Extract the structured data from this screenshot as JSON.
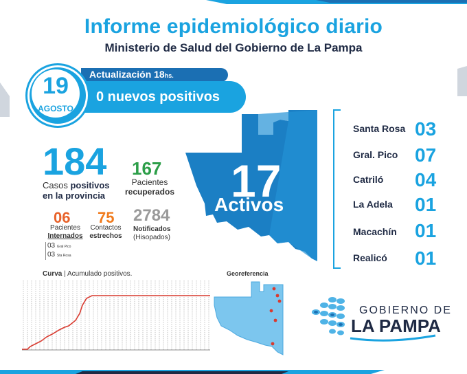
{
  "header": {
    "title": "Informe epidemiológico diario",
    "subtitle": "Ministerio de Salud del Gobierno de La Pampa"
  },
  "date": {
    "day": "19",
    "month": "AGOSTO"
  },
  "update": {
    "label": "Actualización 18",
    "label_suffix": "hs.",
    "new_positives": "0 nuevos positivos"
  },
  "stats": {
    "total": "184",
    "total_label_pre": "Casos ",
    "total_label_bold": "positivos",
    "total_label_line2": "en la provincia",
    "recovered": "167",
    "recovered_label_1": "Pacientes",
    "recovered_label_2": "recuperados",
    "internados": "06",
    "internados_label_1": "Pacientes",
    "internados_label_2": "Internados",
    "contactos": "75",
    "contactos_label_1": "Contactos",
    "contactos_label_2": "estrechos",
    "notificados": "2784",
    "notificados_label_1": "Notificados",
    "notificados_label_2": "(Hisopados)",
    "hosp": [
      {
        "n": "03",
        "place": "Gral Pico"
      },
      {
        "n": "03",
        "place": "Sta Rosa"
      }
    ]
  },
  "active": {
    "number": "17",
    "label": "Activos"
  },
  "cities": [
    {
      "name": "Santa Rosa",
      "count": "03"
    },
    {
      "name": "Gral. Pico",
      "count": "07"
    },
    {
      "name": "Catriló",
      "count": "04"
    },
    {
      "name": "La Adela",
      "count": "01"
    },
    {
      "name": "Macachín",
      "count": "01"
    },
    {
      "name": "Realicó",
      "count": "01"
    }
  ],
  "curve": {
    "title_bold": "Curva",
    "title_rest": " | Acumulado positivos."
  },
  "geo": {
    "title": "Georeferencia"
  },
  "logo": {
    "line1": "GOBIERNO DE",
    "line2": "LA PAMPA"
  },
  "colors": {
    "accent": "#1aa3e0",
    "dark": "#1f2a44",
    "curve": "#d93a2f"
  }
}
